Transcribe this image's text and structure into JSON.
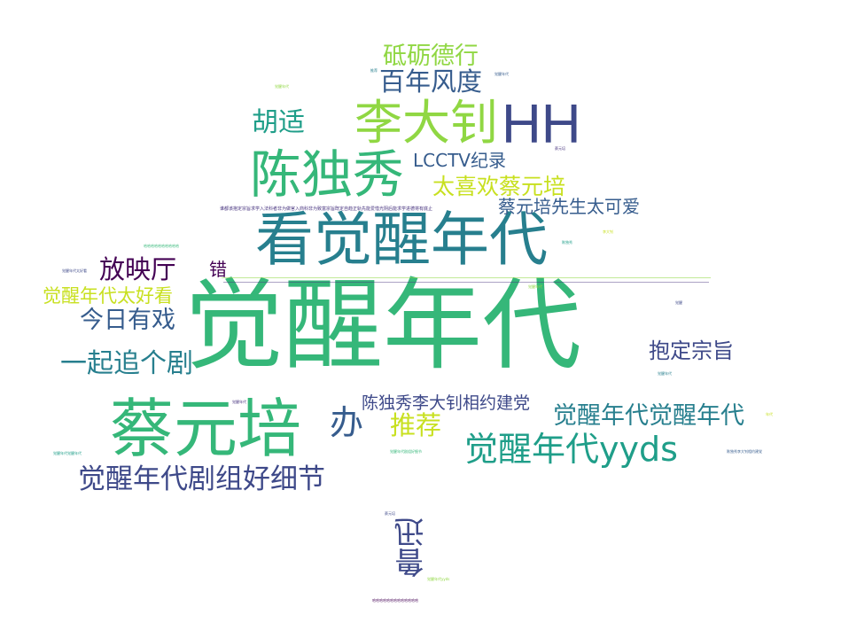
{
  "word_cloud": {
    "colors": {
      "purple": "#46327e",
      "indigo": "#3e4989",
      "slate": "#365c8d",
      "teal": "#277f8e",
      "cyan": "#1f9e89",
      "green": "#35b779",
      "lime": "#90d743",
      "yellow": "#c8e020",
      "deep": "#440154"
    },
    "words": [
      {
        "text": "觉醒年代",
        "color": "green"
      },
      {
        "text": "看觉醒年代",
        "color": "teal"
      },
      {
        "text": "蔡元培",
        "color": "green"
      },
      {
        "text": "陈独秀",
        "color": "green"
      },
      {
        "text": "李大钊",
        "color": "lime"
      },
      {
        "text": "HH",
        "color": "indigo"
      },
      {
        "text": "觉醒年代yyds",
        "color": "cyan"
      },
      {
        "text": "觉醒年代剧组好细节",
        "color": "indigo"
      },
      {
        "text": "百年风度",
        "color": "slate"
      },
      {
        "text": "砥砺德行",
        "color": "lime"
      },
      {
        "text": "胡适",
        "color": "cyan"
      },
      {
        "text": "太喜欢蔡元培",
        "color": "yellow"
      },
      {
        "text": "LCCTV纪录",
        "color": "slate"
      },
      {
        "text": "蔡元培先生太可爱",
        "color": "slate"
      },
      {
        "text": "放映厅",
        "color": "deep"
      },
      {
        "text": "错",
        "color": "deep"
      },
      {
        "text": "觉醒年代太好看",
        "color": "yellow"
      },
      {
        "text": "今日有戏",
        "color": "slate"
      },
      {
        "text": "一起追个剧",
        "color": "teal"
      },
      {
        "text": "抱定宗旨",
        "color": "indigo"
      },
      {
        "text": "办",
        "color": "slate"
      },
      {
        "text": "推荐",
        "color": "yellow"
      },
      {
        "text": "陈独秀李大钊相约建党",
        "color": "indigo"
      },
      {
        "text": "觉醒年代觉醒年代",
        "color": "teal"
      },
      {
        "text": "鲁迅",
        "color": "indigo"
      }
    ],
    "tiny_words": [
      "谁都该抱定宗旨求学入法科者非为做官入商科非为致富宗旨既定自趋正轨先能爱惜光阴后能求学进德将有底止",
      "哈哈哈哈哈哈哈哈哈哈",
      "觉醒年代",
      "觉醒年代太好看",
      "推荐",
      "觉醒年代",
      "蔡元培",
      "陈独秀",
      "李大钊",
      "觉醒",
      "觉醒年代",
      "觉醒年代",
      "年代",
      "陈独秀李大钊相约建党",
      "觉醒年代",
      "觉醒年代觉醒年代",
      "觉醒年代剧组好细节",
      "蔡元培",
      "觉醒年代yyds",
      "哈哈哈哈哈哈哈哈哈哈哈哈哈"
    ]
  }
}
